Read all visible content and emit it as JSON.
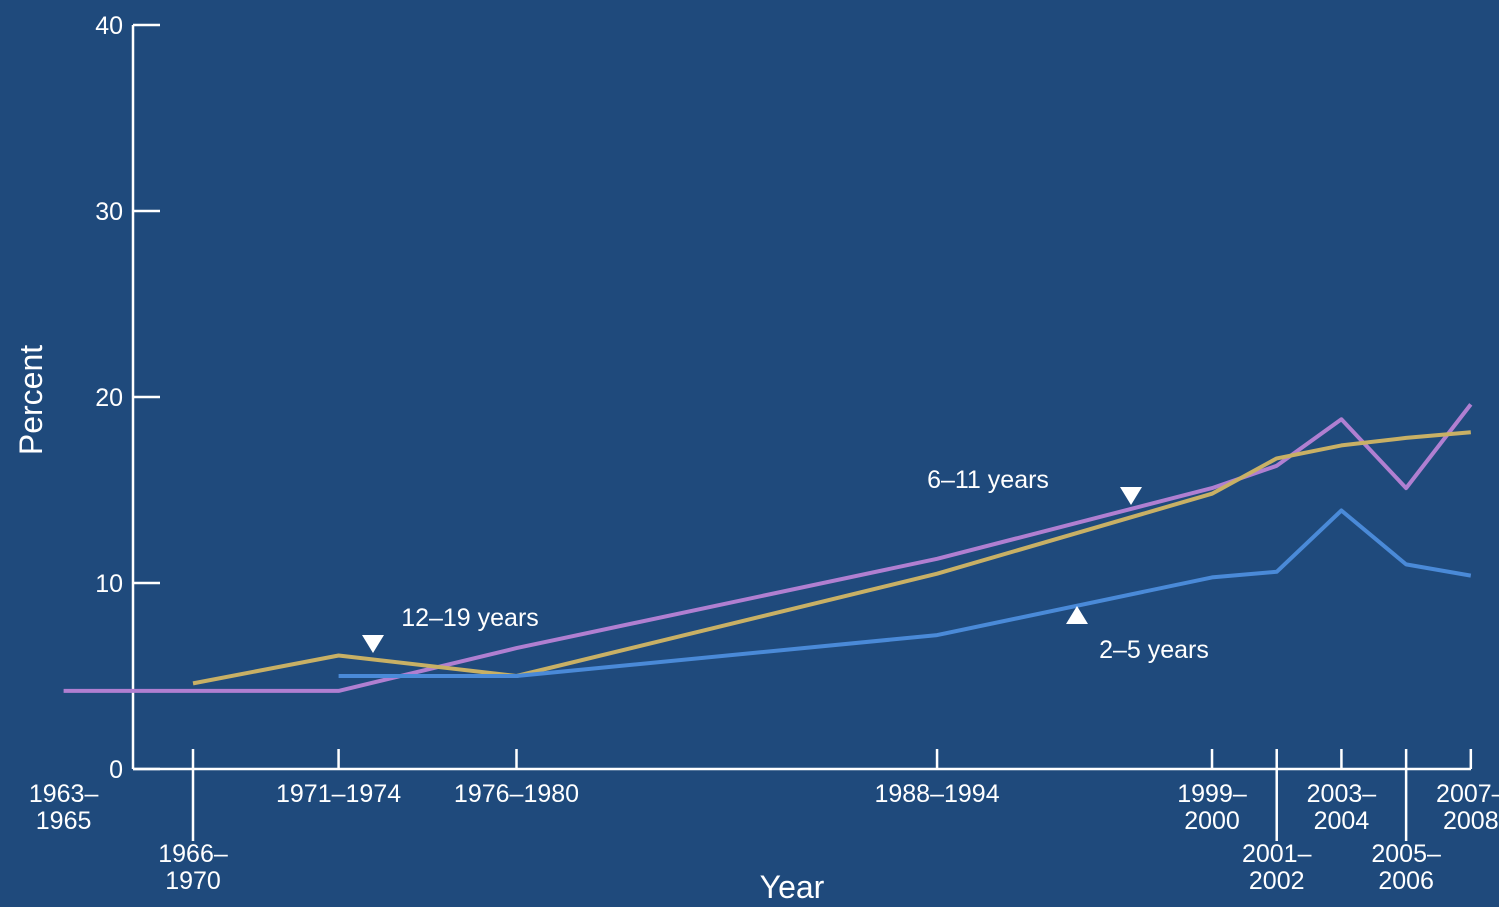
{
  "chart_data": {
    "type": "line",
    "title": "",
    "xlabel": "Year",
    "ylabel": "Percent",
    "ylim": [
      0,
      40
    ],
    "yticks": [
      0,
      10,
      20,
      30,
      40
    ],
    "grid": false,
    "legend": "inline labels",
    "categories": [
      "1963–1965",
      "1966–1970",
      "1971–1974",
      "1976–1980",
      "1988–1994",
      "1999–2000",
      "2001–2002",
      "2003–2004",
      "2005–2006",
      "2007–2008"
    ],
    "category_ticks": [
      {
        "line1": "1963–",
        "line2": "1965",
        "x": 1964
      },
      {
        "line1": "1966–",
        "line2": "1970",
        "x": 1968
      },
      {
        "line1": "1971–1974",
        "line2": "",
        "x": 1972.5
      },
      {
        "line1": "1976–1980",
        "line2": "",
        "x": 1978
      },
      {
        "line1": "1988–1994",
        "line2": "",
        "x": 1991
      },
      {
        "line1": "1999–",
        "line2": "2000",
        "x": 1999.5
      },
      {
        "line1": "2001–",
        "line2": "2002",
        "x": 2001.5
      },
      {
        "line1": "2003–",
        "line2": "2004",
        "x": 2003.5
      },
      {
        "line1": "2005–",
        "line2": "2006",
        "x": 2005.5
      },
      {
        "line1": "2007–",
        "line2": "2008",
        "x": 2007.5
      }
    ],
    "series": [
      {
        "name": "6–11 years",
        "color": "#b07fd1",
        "points": [
          [
            1964,
            4.2
          ],
          [
            1968,
            4.2
          ],
          [
            1972.5,
            4.2
          ],
          [
            1978,
            6.5
          ],
          [
            1991,
            11.3
          ],
          [
            1999.5,
            15.1
          ],
          [
            2001.5,
            16.3
          ],
          [
            2003.5,
            18.8
          ],
          [
            2005.5,
            15.1
          ],
          [
            2007.5,
            19.6
          ]
        ]
      },
      {
        "name": "12–19 years",
        "color": "#c8b065",
        "points": [
          [
            1968,
            4.6
          ],
          [
            1972.5,
            6.1
          ],
          [
            1978,
            5.0
          ],
          [
            1991,
            10.5
          ],
          [
            1999.5,
            14.8
          ],
          [
            2001.5,
            16.7
          ],
          [
            2003.5,
            17.4
          ],
          [
            2005.5,
            17.8
          ],
          [
            2007.5,
            18.1
          ]
        ]
      },
      {
        "name": "2–5 years",
        "color": "#4a8ad8",
        "points": [
          [
            1972.5,
            5.0
          ],
          [
            1978,
            5.0
          ],
          [
            1991,
            7.2
          ],
          [
            1999.5,
            10.3
          ],
          [
            2001.5,
            10.6
          ],
          [
            2003.5,
            13.9
          ],
          [
            2005.5,
            11.0
          ],
          [
            2007.5,
            10.4
          ]
        ]
      }
    ],
    "annotations": [
      {
        "text": "12–19 years",
        "series": "12–19 years",
        "at_x": 1972.5,
        "marker": "down-triangle"
      },
      {
        "text": "6–11 years",
        "series": "6–11 years",
        "at_x": 2005.5,
        "marker": "down-triangle"
      },
      {
        "text": "2–5 years",
        "series": "2–5 years",
        "at_x": 1995.5,
        "marker": "up-triangle"
      }
    ]
  }
}
